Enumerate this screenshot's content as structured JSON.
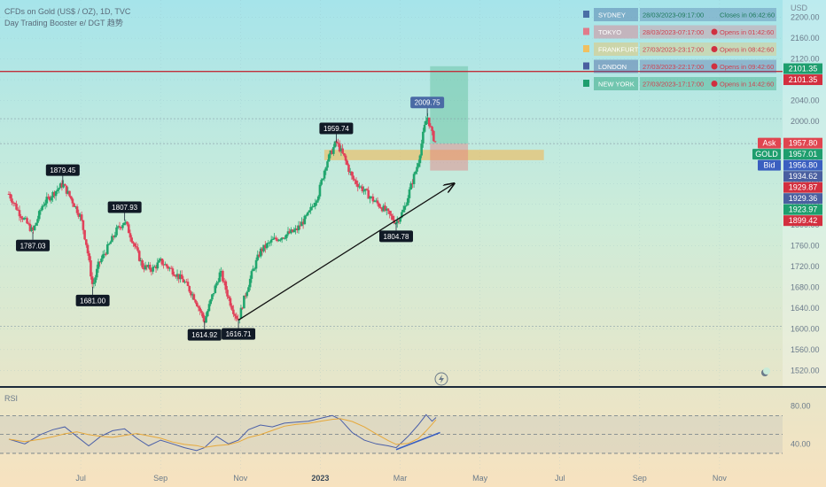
{
  "header": {
    "title": "CFDs on Gold (US$ / OZ), 1D, TVC",
    "indicator": "Day Trading Booster e/ DGT 趋势"
  },
  "currency": "USD",
  "sessions": [
    {
      "name": "SYDNEY",
      "time": "28/03/2023-09:17:00",
      "status": "Closes in 06:42:60",
      "color": "#4a6fa5",
      "open": true
    },
    {
      "name": "TOKYO",
      "time": "28/03/2023-07:17:00",
      "status": "Opens in 01:42:60",
      "color": "#e07b8a",
      "open": false
    },
    {
      "name": "FRANKFURT",
      "time": "27/03/2023-23:17:00",
      "status": "Opens in 08:42:60",
      "color": "#f0c060",
      "open": false
    },
    {
      "name": "LONDON",
      "time": "27/03/2023-22:17:00",
      "status": "Opens in 09:42:60",
      "color": "#4a5fa0",
      "open": false
    },
    {
      "name": "NEW YORK",
      "time": "27/03/2023-17:17:00",
      "status": "Opens in 14:42:60",
      "color": "#1e9e6e",
      "open": false
    }
  ],
  "price_labels": [
    {
      "text": "2101.35",
      "price": 2101.35,
      "bg": "#1e9e6e"
    },
    {
      "text": "2101.35",
      "price": 2096.0,
      "bg": "#d32f3f"
    },
    {
      "text": "1957.80",
      "price": 1957.8,
      "bg": "#e04550",
      "tag": "Ask"
    },
    {
      "text": "1957.01",
      "price": 1957.01,
      "bg": "#1e9e6e",
      "tag": "GOLD"
    },
    {
      "text": "1956.80",
      "price": 1956.8,
      "bg": "#3a5fc0",
      "tag": "Bid"
    },
    {
      "text": "1934.62",
      "price": 1934.62,
      "bg": "#4a5fa0"
    },
    {
      "text": "1929.87",
      "price": 1929.87,
      "bg": "#d32f3f"
    },
    {
      "text": "1929.36",
      "price": 1929.36,
      "bg": "#4a5fa0"
    },
    {
      "text": "1923.97",
      "price": 1923.97,
      "bg": "#1e9e6e"
    },
    {
      "text": "1899.42",
      "price": 1899.42,
      "bg": "#d32f3f"
    }
  ],
  "annotations": [
    {
      "text": "1879.45",
      "month": 1.55,
      "price": 1879.45,
      "dir": "up"
    },
    {
      "text": "1787.03",
      "month": 0.8,
      "price": 1787.03,
      "dir": "down"
    },
    {
      "text": "1807.93",
      "month": 3.1,
      "price": 1807.93,
      "dir": "up"
    },
    {
      "text": "1681.00",
      "month": 2.3,
      "price": 1681.0,
      "dir": "down"
    },
    {
      "text": "1614.92",
      "month": 5.1,
      "price": 1614.92,
      "dir": "down"
    },
    {
      "text": "1616.71",
      "month": 5.95,
      "price": 1616.71,
      "dir": "down"
    },
    {
      "text": "1959.74",
      "month": 8.4,
      "price": 1959.74,
      "dir": "up"
    },
    {
      "text": "1804.78",
      "month": 9.9,
      "price": 1804.78,
      "dir": "down"
    },
    {
      "text": "2009.75",
      "month": 10.68,
      "price": 2009.75,
      "dir": "up"
    }
  ],
  "chart_data": {
    "type": "candlestick",
    "title": "CFDs on Gold (US$ / OZ), 1D, TVC",
    "ylabel": "USD",
    "ylim": [
      1500,
      2220
    ],
    "y_ticks": [
      1520,
      1560,
      1600,
      1640,
      1680,
      1720,
      1760,
      1800,
      1840,
      1880,
      1920,
      1960,
      2000,
      2040,
      2080,
      2120,
      2160,
      2200
    ],
    "y_tick_labels": [
      "1520.00",
      "1560.00",
      "1600.00",
      "1640.00",
      "1680.00",
      "1720.00",
      "1760.00",
      "1800.00",
      "1840.00",
      "1880.00",
      "1920.00",
      "1960.00",
      "2000.00",
      "2040.00",
      "2080.00",
      "2120.00",
      "2160.00",
      "2200.00"
    ],
    "x_ticks": [
      "Jul",
      "Sep",
      "Nov",
      "2023",
      "Mar",
      "May",
      "Jul",
      "Sep",
      "Nov"
    ],
    "x_tick_months": [
      2,
      4,
      6,
      8,
      10,
      12,
      14,
      16,
      18
    ],
    "x_month_range": [
      0.2,
      19.8
    ],
    "price_path": [
      [
        0.2,
        1860
      ],
      [
        0.45,
        1825
      ],
      [
        0.8,
        1787
      ],
      [
        1.05,
        1840
      ],
      [
        1.3,
        1860
      ],
      [
        1.55,
        1879
      ],
      [
        1.8,
        1845
      ],
      [
        2.0,
        1815
      ],
      [
        2.15,
        1760
      ],
      [
        2.3,
        1681
      ],
      [
        2.45,
        1725
      ],
      [
        2.7,
        1760
      ],
      [
        2.9,
        1790
      ],
      [
        3.1,
        1808
      ],
      [
        3.35,
        1760
      ],
      [
        3.55,
        1720
      ],
      [
        3.8,
        1715
      ],
      [
        4.0,
        1730
      ],
      [
        4.3,
        1712
      ],
      [
        4.6,
        1690
      ],
      [
        4.85,
        1660
      ],
      [
        5.1,
        1615
      ],
      [
        5.3,
        1665
      ],
      [
        5.5,
        1710
      ],
      [
        5.7,
        1660
      ],
      [
        5.85,
        1630
      ],
      [
        5.95,
        1617
      ],
      [
        6.1,
        1660
      ],
      [
        6.3,
        1710
      ],
      [
        6.5,
        1750
      ],
      [
        6.8,
        1770
      ],
      [
        7.1,
        1780
      ],
      [
        7.4,
        1790
      ],
      [
        7.7,
        1820
      ],
      [
        7.95,
        1860
      ],
      [
        8.15,
        1920
      ],
      [
        8.4,
        1960
      ],
      [
        8.6,
        1930
      ],
      [
        8.8,
        1890
      ],
      [
        9.05,
        1870
      ],
      [
        9.3,
        1850
      ],
      [
        9.6,
        1830
      ],
      [
        9.9,
        1805
      ],
      [
        10.1,
        1830
      ],
      [
        10.25,
        1870
      ],
      [
        10.45,
        1920
      ],
      [
        10.6,
        1985
      ],
      [
        10.68,
        2010
      ],
      [
        10.8,
        1975
      ],
      [
        10.9,
        1957
      ]
    ],
    "pivot_levels": [
      {
        "price": 2096.0,
        "label": "2101.35"
      },
      {
        "price": 2005.0
      },
      {
        "price": 1957.01
      },
      {
        "price": 1605.0
      }
    ],
    "trendline": {
      "from": [
        5.95,
        1617
      ],
      "to": [
        11.35,
        1880
      ]
    },
    "supply_zone": {
      "months": [
        8.1,
        13.6
      ],
      "price": [
        1925,
        1945
      ]
    },
    "position_box": {
      "months": [
        10.75,
        11.7
      ],
      "entry": 1957.01,
      "target": 2106,
      "stop": 1905
    },
    "rsi": {
      "label": "RSI",
      "ylim": [
        30,
        90
      ],
      "levels": [
        70,
        50,
        30
      ],
      "tick_values": [
        80,
        40
      ],
      "tick_labels": [
        "80.00",
        "40.00"
      ],
      "path": [
        [
          0.2,
          45
        ],
        [
          0.6,
          40
        ],
        [
          1.0,
          50
        ],
        [
          1.3,
          55
        ],
        [
          1.6,
          58
        ],
        [
          1.9,
          48
        ],
        [
          2.2,
          38
        ],
        [
          2.5,
          48
        ],
        [
          2.8,
          54
        ],
        [
          3.1,
          56
        ],
        [
          3.4,
          46
        ],
        [
          3.7,
          38
        ],
        [
          4.0,
          44
        ],
        [
          4.3,
          40
        ],
        [
          4.6,
          36
        ],
        [
          4.9,
          33
        ],
        [
          5.1,
          36
        ],
        [
          5.4,
          48
        ],
        [
          5.7,
          40
        ],
        [
          5.95,
          44
        ],
        [
          6.2,
          55
        ],
        [
          6.5,
          60
        ],
        [
          6.8,
          58
        ],
        [
          7.1,
          62
        ],
        [
          7.4,
          63
        ],
        [
          7.7,
          64
        ],
        [
          8.0,
          67
        ],
        [
          8.3,
          70
        ],
        [
          8.5,
          66
        ],
        [
          8.8,
          52
        ],
        [
          9.1,
          44
        ],
        [
          9.4,
          40
        ],
        [
          9.7,
          38
        ],
        [
          9.9,
          36
        ],
        [
          10.2,
          48
        ],
        [
          10.45,
          60
        ],
        [
          10.65,
          71
        ],
        [
          10.8,
          64
        ],
        [
          10.9,
          68
        ]
      ],
      "trendline": {
        "from": [
          9.9,
          34
        ],
        "to": [
          11.0,
          52
        ]
      }
    }
  }
}
